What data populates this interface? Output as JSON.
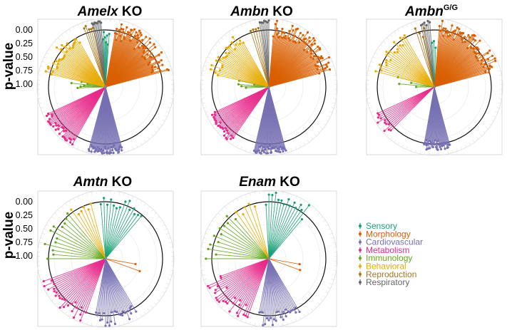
{
  "figure": {
    "ylabel": "p-value",
    "yticks": [
      "0.00",
      "0.25",
      "0.50",
      "0.75",
      "1.00"
    ]
  },
  "panels": [
    {
      "gene": "Amelx",
      "suffix": " KO",
      "sup": ""
    },
    {
      "gene": "Ambn",
      "suffix": " KO",
      "sup": ""
    },
    {
      "gene": "Ambn",
      "suffix": "",
      "sup": "G/G"
    },
    {
      "gene": "Amtn",
      "suffix": " KO",
      "sup": ""
    },
    {
      "gene": "Enam",
      "suffix": " KO",
      "sup": ""
    }
  ],
  "legend": [
    {
      "label": "Sensory",
      "color": "#1a9e77"
    },
    {
      "label": "Morphology",
      "color": "#d95f02"
    },
    {
      "label": "Cardiovascular",
      "color": "#7570b3"
    },
    {
      "label": "Metabolism",
      "color": "#e7298a"
    },
    {
      "label": "Immunology",
      "color": "#66a61e"
    },
    {
      "label": "Behavioral",
      "color": "#e6ab02"
    },
    {
      "label": "Reproduction",
      "color": "#a6761d"
    },
    {
      "label": "Respiratory",
      "color": "#666666"
    }
  ],
  "chart_data": [
    {
      "type": "radial-lollipop",
      "title": "Amelx KO",
      "ylabel": "p-value",
      "ylim": [
        0,
        1.2
      ],
      "significance_circle": 1.0,
      "series": [
        {
          "name": "Respiratory",
          "count": 8,
          "angle_deg": [
            -12,
            -4
          ],
          "p_range": [
            0.0,
            0.06
          ]
        },
        {
          "name": "Reproduction",
          "count": 5,
          "angle_deg": [
            -20,
            -12
          ],
          "p_range": [
            0.05,
            0.2
          ]
        },
        {
          "name": "Sensory",
          "count": 7,
          "angle_deg": [
            -3,
            4
          ],
          "p_range": [
            0.1,
            0.45
          ]
        },
        {
          "name": "Morphology",
          "count": 75,
          "angle_deg": [
            10,
            75
          ],
          "p_range": [
            0.02,
            0.35
          ]
        },
        {
          "name": "Cardiovascular",
          "count": 45,
          "angle_deg": [
            165,
            195
          ],
          "p_range": [
            0.0,
            0.15
          ]
        },
        {
          "name": "Metabolism",
          "count": 30,
          "angle_deg": [
            210,
            245
          ],
          "p_range": [
            0.0,
            0.15
          ]
        },
        {
          "name": "Immunology",
          "count": 6,
          "angle_deg": [
            268,
            282
          ],
          "p_range": [
            0.55,
            0.95
          ]
        },
        {
          "name": "Behavioral",
          "count": 30,
          "angle_deg": [
            283,
            330
          ],
          "p_range": [
            0.05,
            0.3
          ]
        }
      ]
    },
    {
      "type": "radial-lollipop",
      "title": "Ambn KO",
      "ylabel": "p-value",
      "ylim": [
        0,
        1.2
      ],
      "significance_circle": 1.0,
      "series": [
        {
          "name": "Respiratory",
          "count": 7,
          "angle_deg": [
            -8,
            0
          ],
          "p_range": [
            0.0,
            0.05
          ]
        },
        {
          "name": "Reproduction",
          "count": 4,
          "angle_deg": [
            -18,
            -10
          ],
          "p_range": [
            0.05,
            0.2
          ]
        },
        {
          "name": "Morphology",
          "count": 70,
          "angle_deg": [
            5,
            75
          ],
          "p_range": [
            0.0,
            0.3
          ]
        },
        {
          "name": "Cardiovascular",
          "count": 45,
          "angle_deg": [
            165,
            193
          ],
          "p_range": [
            0.0,
            0.15
          ]
        },
        {
          "name": "Metabolism",
          "count": 25,
          "angle_deg": [
            215,
            245
          ],
          "p_range": [
            0.0,
            0.15
          ]
        },
        {
          "name": "Immunology",
          "count": 5,
          "angle_deg": [
            268,
            282
          ],
          "p_range": [
            0.6,
            0.95
          ]
        },
        {
          "name": "Behavioral",
          "count": 25,
          "angle_deg": [
            283,
            330
          ],
          "p_range": [
            0.05,
            0.3
          ]
        }
      ]
    },
    {
      "type": "radial-lollipop",
      "title": "AmbnG/G",
      "ylabel": "p-value",
      "ylim": [
        0,
        1.2
      ],
      "significance_circle": 1.0,
      "series": [
        {
          "name": "Respiratory",
          "count": 6,
          "angle_deg": [
            -12,
            -4
          ],
          "p_range": [
            0.0,
            0.1
          ]
        },
        {
          "name": "Reproduction",
          "count": 4,
          "angle_deg": [
            -18,
            -10
          ],
          "p_range": [
            0.1,
            0.3
          ]
        },
        {
          "name": "Sensory",
          "count": 3,
          "angle_deg": [
            -3,
            2
          ],
          "p_range": [
            0.3,
            0.5
          ]
        },
        {
          "name": "Morphology",
          "count": 70,
          "angle_deg": [
            5,
            75
          ],
          "p_range": [
            0.0,
            0.3
          ]
        },
        {
          "name": "Cardiovascular",
          "count": 35,
          "angle_deg": [
            165,
            190
          ],
          "p_range": [
            0.05,
            0.25
          ]
        },
        {
          "name": "Metabolism",
          "count": 12,
          "angle_deg": [
            225,
            245
          ],
          "p_range": [
            0.0,
            0.15
          ]
        },
        {
          "name": "Immunology",
          "count": 4,
          "angle_deg": [
            270,
            285
          ],
          "p_range": [
            0.5,
            0.95
          ]
        },
        {
          "name": "Behavioral",
          "count": 20,
          "angle_deg": [
            285,
            330
          ],
          "p_range": [
            0.05,
            0.3
          ]
        }
      ]
    },
    {
      "type": "radial-lollipop",
      "title": "Amtn KO",
      "ylabel": "p-value",
      "ylim": [
        0,
        1.2
      ],
      "significance_circle": 1.0,
      "series": [
        {
          "name": "Sensory",
          "count": 14,
          "angle_deg": [
            -5,
            40
          ],
          "p_range": [
            0.0,
            0.3
          ]
        },
        {
          "name": "Morphology",
          "count": 2,
          "angle_deg": [
            100,
            110
          ],
          "p_range": [
            0.5,
            0.7
          ]
        },
        {
          "name": "Cardiovascular",
          "count": 25,
          "angle_deg": [
            150,
            190
          ],
          "p_range": [
            0.0,
            0.25
          ]
        },
        {
          "name": "Metabolism",
          "count": 25,
          "angle_deg": [
            200,
            250
          ],
          "p_range": [
            0.0,
            0.3
          ]
        },
        {
          "name": "Immunology",
          "count": 12,
          "angle_deg": [
            270,
            320
          ],
          "p_range": [
            0.05,
            0.3
          ]
        },
        {
          "name": "Behavioral",
          "count": 6,
          "angle_deg": [
            325,
            345
          ],
          "p_range": [
            0.1,
            0.3
          ]
        }
      ]
    },
    {
      "type": "radial-lollipop",
      "title": "Enam KO",
      "ylabel": "p-value",
      "ylim": [
        0,
        1.2
      ],
      "significance_circle": 1.0,
      "series": [
        {
          "name": "Sensory",
          "count": 15,
          "angle_deg": [
            -3,
            40
          ],
          "p_range": [
            0.0,
            0.3
          ]
        },
        {
          "name": "Morphology",
          "count": 2,
          "angle_deg": [
            100,
            110
          ],
          "p_range": [
            0.55,
            0.75
          ]
        },
        {
          "name": "Cardiovascular",
          "count": 25,
          "angle_deg": [
            150,
            190
          ],
          "p_range": [
            0.0,
            0.25
          ]
        },
        {
          "name": "Metabolism",
          "count": 25,
          "angle_deg": [
            200,
            250
          ],
          "p_range": [
            0.0,
            0.3
          ]
        },
        {
          "name": "Immunology",
          "count": 12,
          "angle_deg": [
            270,
            320
          ],
          "p_range": [
            0.05,
            0.3
          ]
        },
        {
          "name": "Behavioral",
          "count": 5,
          "angle_deg": [
            325,
            345
          ],
          "p_range": [
            0.15,
            0.35
          ]
        }
      ]
    }
  ]
}
